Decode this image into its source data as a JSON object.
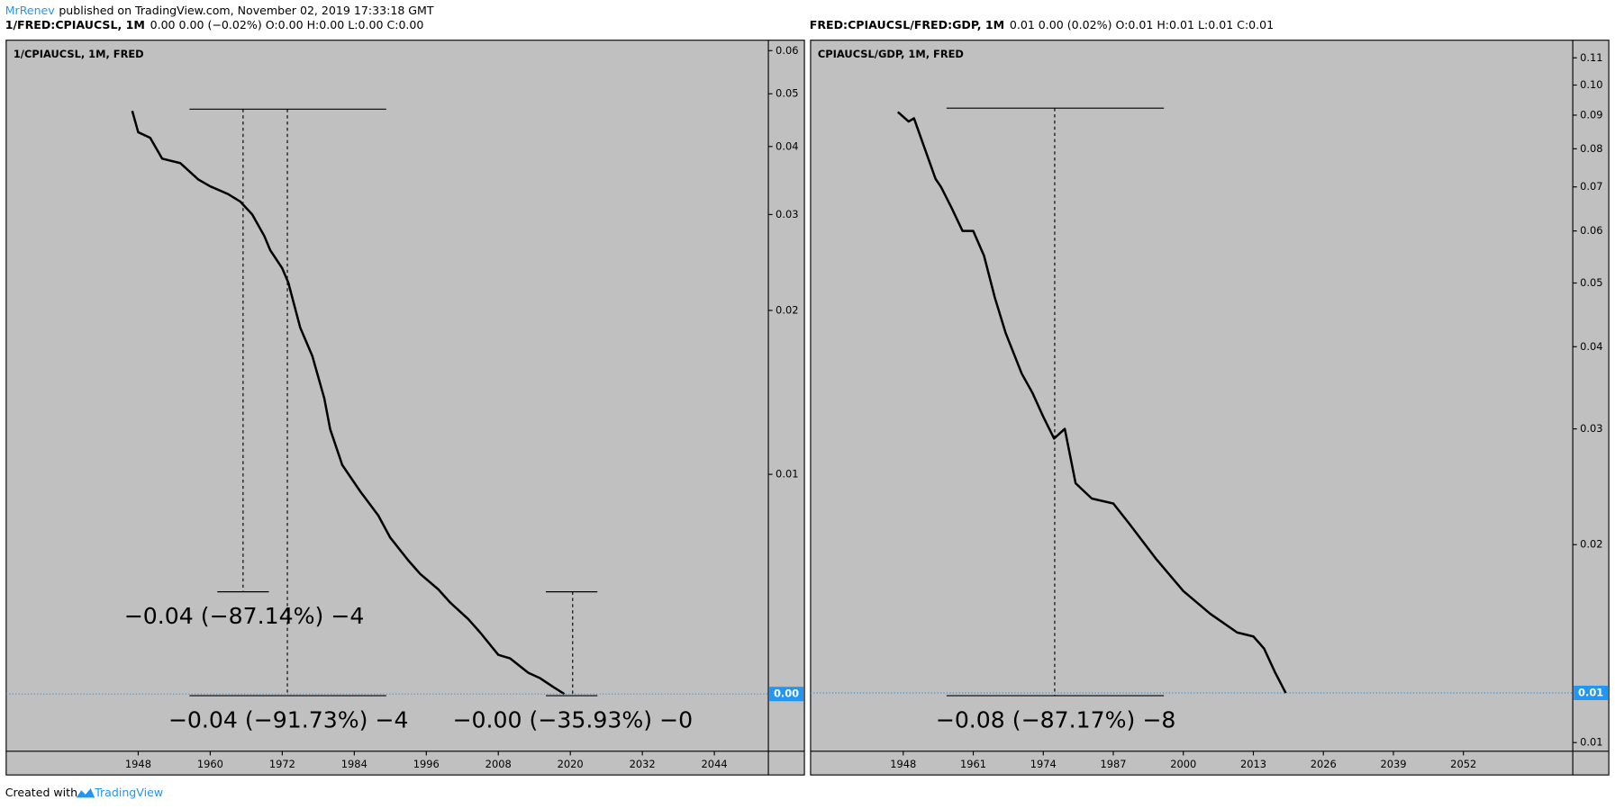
{
  "header": {
    "author": "MrRenev",
    "published": "published on TradingView.com, November 02, 2019 17:33:18 GMT"
  },
  "footer": {
    "created": "Created with",
    "brand": "TradingView"
  },
  "chart_data": [
    {
      "type": "line",
      "symbol": "1/FRED:CPIAUCSL, 1M",
      "quote": "0.00 0.00 (−0.02%) O:0.00 H:0.00 L:0.00 C:0.00",
      "title": "1/CPIAUCSL, 1M, FRED",
      "log_scale": true,
      "color": "#000000",
      "xlim": [
        1926,
        2053
      ],
      "xticks": [
        1948,
        1960,
        1972,
        1984,
        1996,
        2008,
        2020,
        2032,
        2044
      ],
      "ylim": [
        0.0031,
        0.0627
      ],
      "yticks": [
        0.06,
        0.05,
        0.04,
        0.03,
        0.02,
        0.01
      ],
      "x": [
        1947,
        1948,
        1950,
        1952,
        1955,
        1958,
        1960,
        1963,
        1965,
        1967,
        1969,
        1970,
        1972,
        1973,
        1975,
        1977,
        1979,
        1980,
        1982,
        1985,
        1988,
        1990,
        1993,
        1995,
        1998,
        2000,
        2003,
        2005,
        2008,
        2010,
        2013,
        2015,
        2017,
        2019
      ],
      "series": [
        {
          "name": "1/CPIAUCSL",
          "values": [
            0.0465,
            0.0425,
            0.0415,
            0.038,
            0.0373,
            0.0348,
            0.0338,
            0.0327,
            0.0317,
            0.03,
            0.0274,
            0.0258,
            0.0239,
            0.0225,
            0.0186,
            0.0165,
            0.0138,
            0.0121,
            0.0104,
            0.0093,
            0.0084,
            0.00765,
            0.00695,
            0.00656,
            0.00615,
            0.00581,
            0.00542,
            0.00512,
            0.00466,
            0.00459,
            0.00432,
            0.00422,
            0.00408,
            0.00395
          ]
        }
      ],
      "last": {
        "value": 0.00395,
        "label": "0.00"
      },
      "annotations": [
        "−0.04 (−87.14%) −4",
        "−0.04 (−91.73%) −4",
        "−0.00 (−35.93%) −0"
      ]
    },
    {
      "type": "line",
      "symbol": "FRED:CPIAUCSL/FRED:GDP, 1M",
      "quote": "0.01 0.00 (0.02%) O:0.01 H:0.01 L:0.01 C:0.01",
      "title": "CPIAUCSL/GDP, 1M, FRED",
      "log_scale": true,
      "color": "#000000",
      "xlim": [
        1930.8,
        2072.3
      ],
      "xticks": [
        1948,
        1961,
        1974,
        1987,
        2000,
        2013,
        2026,
        2039,
        2052
      ],
      "ylim": [
        0.0097,
        0.117
      ],
      "yticks": [
        0.11,
        {
          "value": 0.1,
          "label": "0.10"
        },
        0.09,
        0.08,
        0.07,
        0.06,
        0.05,
        0.04,
        0.03,
        0.02,
        0.01
      ],
      "x": [
        1947,
        1949,
        1950,
        1952,
        1954,
        1955,
        1957,
        1959,
        1961,
        1963,
        1965,
        1967,
        1970,
        1972,
        1974,
        1976,
        1978,
        1980,
        1983,
        1987,
        1990,
        1995,
        2000,
        2005,
        2010,
        2013,
        2015,
        2017,
        2019
      ],
      "series": [
        {
          "name": "CPIAUCSL/GDP",
          "values": [
            0.091,
            0.088,
            0.089,
            0.08,
            0.072,
            0.07,
            0.065,
            0.06,
            0.06,
            0.055,
            0.0475,
            0.042,
            0.0364,
            0.034,
            0.0313,
            0.029,
            0.03,
            0.0248,
            0.0235,
            0.0231,
            0.0215,
            0.019,
            0.017,
            0.0157,
            0.0147,
            0.0145,
            0.0139,
            0.0128,
            0.0119
          ]
        }
      ],
      "last": {
        "value": 0.0119,
        "label": "0.01"
      },
      "annotations": [
        "−0.08 (−87.17%) −8"
      ]
    }
  ]
}
